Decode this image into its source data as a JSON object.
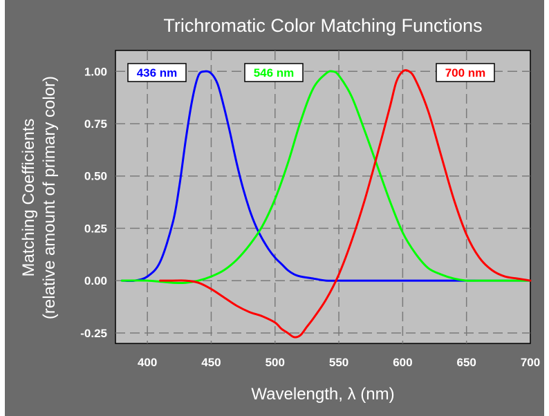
{
  "chart_data": {
    "type": "line",
    "title": "Trichromatic Color Matching Functions",
    "xlabel": "Wavelength, λ (nm)",
    "ylabel": "Matching Coefficients",
    "ylabel_line2": "(relative amount of primary color)",
    "xlim": [
      375,
      700
    ],
    "ylim": [
      -0.3,
      1.1
    ],
    "x_ticks": [
      400,
      450,
      500,
      550,
      600,
      650,
      700
    ],
    "x_tick_labels": [
      "400",
      "450",
      "500",
      "550",
      "600",
      "650",
      "700"
    ],
    "y_ticks": [
      -0.25,
      0,
      0.25,
      0.5,
      0.75,
      1.0
    ],
    "y_tick_labels": [
      "-0.25",
      "0.00",
      "0.25",
      "0.50",
      "0.75",
      "1.00"
    ],
    "grid": true,
    "series": [
      {
        "name": "436 nm",
        "color": "#0000ff",
        "x": [
          380,
          390,
          400,
          410,
          420,
          425,
          430,
          435,
          440,
          445,
          450,
          455,
          460,
          465,
          470,
          475,
          480,
          485,
          490,
          495,
          500,
          505,
          510,
          515,
          520,
          530,
          540,
          550,
          560,
          600,
          650,
          700
        ],
        "y": [
          0.0,
          0.0,
          0.02,
          0.09,
          0.28,
          0.45,
          0.67,
          0.86,
          0.98,
          1.0,
          0.99,
          0.94,
          0.83,
          0.7,
          0.56,
          0.44,
          0.34,
          0.26,
          0.2,
          0.15,
          0.11,
          0.08,
          0.05,
          0.03,
          0.02,
          0.01,
          0.0,
          0.0,
          0.0,
          0.0,
          0.0,
          0.0
        ]
      },
      {
        "name": "546 nm",
        "color": "#00ff00",
        "x": [
          380,
          400,
          420,
          430,
          440,
          450,
          460,
          470,
          480,
          490,
          500,
          510,
          520,
          530,
          540,
          545,
          550,
          560,
          570,
          580,
          590,
          600,
          610,
          620,
          630,
          640,
          650,
          660,
          700
        ],
        "y": [
          0.0,
          0.0,
          -0.01,
          -0.01,
          0.0,
          0.02,
          0.05,
          0.1,
          0.17,
          0.26,
          0.39,
          0.56,
          0.76,
          0.92,
          0.99,
          1.0,
          0.98,
          0.88,
          0.72,
          0.55,
          0.38,
          0.23,
          0.13,
          0.06,
          0.03,
          0.01,
          0.0,
          0.0,
          0.0
        ]
      },
      {
        "name": "700 nm",
        "color": "#ff0000",
        "x": [
          410,
          420,
          430,
          440,
          450,
          460,
          470,
          480,
          490,
          500,
          505,
          510,
          515,
          520,
          525,
          530,
          540,
          550,
          560,
          570,
          580,
          590,
          595,
          600,
          605,
          610,
          620,
          630,
          640,
          650,
          660,
          670,
          680,
          690,
          700
        ],
        "y": [
          0.0,
          0.0,
          0.0,
          -0.01,
          -0.04,
          -0.08,
          -0.12,
          -0.15,
          -0.17,
          -0.2,
          -0.23,
          -0.25,
          -0.27,
          -0.26,
          -0.22,
          -0.18,
          -0.09,
          0.03,
          0.19,
          0.38,
          0.6,
          0.83,
          0.95,
          1.0,
          1.0,
          0.96,
          0.81,
          0.6,
          0.39,
          0.22,
          0.11,
          0.05,
          0.02,
          0.01,
          0.0
        ]
      }
    ]
  }
}
